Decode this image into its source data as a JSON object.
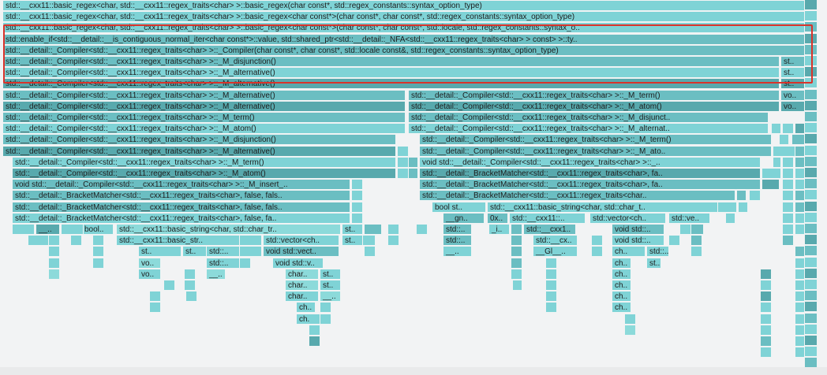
{
  "frames": [
    {
      "row": 0,
      "label": "std::__cxx11::basic_regex<char, std::__cxx11::regex_traits<char> >::basic_regex(char const*, std::regex_constants::syntax_option_type)"
    },
    {
      "row": 1,
      "label": "std::__cxx11::basic_regex<char, std::__cxx11::regex_traits<char> >::basic_regex<char const*>(char const*, char const*, std::regex_constants::syntax_option_type)"
    },
    {
      "row": 2,
      "label": "std::__cxx11::basic_regex<char, std::__cxx11::regex_traits<char> >::basic_regex<char const*>(char const*, char const*, std::locale, std::regex_constants::syntax_o.."
    },
    {
      "row": 3,
      "label": "std::enable_if<std::__detail::__is_contiguous_normal_iter<char const*>::value, std::shared_ptr<std::__detail::_NFA<std::__cxx11::regex_traits<char> > const> >::ty.."
    },
    {
      "row": 4,
      "label": "std::__detail::_Compiler<std::__cxx11::regex_traits<char> >::_Compiler(char const*, char const*, std::locale const&, std::regex_constants::syntax_option_type)"
    },
    {
      "row": 5,
      "label": "std::__detail::_Compiler<std::__cxx11::regex_traits<char> >::_M_disjunction()"
    },
    {
      "row": 5,
      "label": "st.."
    },
    {
      "row": 6,
      "label": "std::__detail::_Compiler<std::__cxx11::regex_traits<char> >::_M_alternative()"
    },
    {
      "row": 6,
      "label": "st.."
    },
    {
      "row": 7,
      "label": "std::__detail::_Compiler<std::__cxx11::regex_traits<char> >::_M_alternative()"
    },
    {
      "row": 7,
      "label": "st.."
    },
    {
      "row": 8,
      "label": "std::__detail::_Compiler<std::__cxx11::regex_traits<char> >::_M_alternative()"
    },
    {
      "row": 8,
      "label": "std::__detail::_Compiler<std::__cxx11::regex_traits<char> >::_M_term()"
    },
    {
      "row": 8,
      "label": "vo.."
    },
    {
      "row": 9,
      "label": "std::__detail::_Compiler<std::__cxx11::regex_traits<char> >::_M_alternative()"
    },
    {
      "row": 9,
      "label": "std::__detail::_Compiler<std::__cxx11::regex_traits<char> >::_M_atom()"
    },
    {
      "row": 9,
      "label": "vo.."
    },
    {
      "row": 10,
      "label": "std::__detail::_Compiler<std::__cxx11::regex_traits<char> >::_M_term()"
    },
    {
      "row": 10,
      "label": "std::__detail::_Compiler<std::__cxx11::regex_traits<char> >::_M_disjunct.."
    },
    {
      "row": 11,
      "label": "std::__detail::_Compiler<std::__cxx11::regex_traits<char> >::_M_atom()"
    },
    {
      "row": 11,
      "label": "std::__detail::_Compiler<std::__cxx11::regex_traits<char> >::_M_alternat.."
    },
    {
      "row": 12,
      "label": "std::__detail::_Compiler<std::__cxx11::regex_traits<char> >::_M_disjunction()"
    },
    {
      "row": 12,
      "label": "std::__detail::_Compiler<std::__cxx11::regex_traits<char> >::_M_term()"
    },
    {
      "row": 13,
      "label": "std::__detail::_Compiler<std::__cxx11::regex_traits<char> >::_M_alternative()"
    },
    {
      "row": 13,
      "label": "std::__detail::_Compiler<std::__cxx11::regex_traits<char> >::_M_ato.."
    },
    {
      "row": 14,
      "label": "std::__detail::_Compiler<std::__cxx11::regex_traits<char> >::_M_term()"
    },
    {
      "row": 14,
      "label": "void std::__detail::_Compiler<std::__cxx11::regex_traits<char> >::_.."
    },
    {
      "row": 15,
      "label": "std::__detail::_Compiler<std::__cxx11::regex_traits<char> >::_M_atom()"
    },
    {
      "row": 15,
      "label": "std::__detail::_BracketMatcher<std::__cxx11::regex_traits<char>, fa.."
    },
    {
      "row": 16,
      "label": "void std::__detail::_Compiler<std::__cxx11::regex_traits<char> >::_M_insert_.."
    },
    {
      "row": 16,
      "label": "std::__detail::_BracketMatcher<std::__cxx11::regex_traits<char>, fa.."
    },
    {
      "row": 17,
      "label": "std::__detail::_BracketMatcher<std::__cxx11::regex_traits<char>, false, fals.."
    },
    {
      "row": 17,
      "label": "std::__detail::_BracketMatcher<std::__cxx11::regex_traits<char.."
    },
    {
      "row": 18,
      "label": "std::__detail::_BracketMatcher<std::__cxx11::regex_traits<char>, false, fals.."
    },
    {
      "row": 18,
      "label": "bool st.."
    },
    {
      "row": 18,
      "label": "std::__cxx11::basic_string<char, std::char_t.."
    },
    {
      "row": 19,
      "label": "std::__detail::_BracketMatcher<std::__cxx11::regex_traits<char>, false, fa.."
    },
    {
      "row": 19,
      "label": "__gn.."
    },
    {
      "row": 19,
      "label": "0x.."
    },
    {
      "row": 19,
      "label": "std::__cxx11::.."
    },
    {
      "row": 19,
      "label": "std::vector<ch.."
    },
    {
      "row": 19,
      "label": "std::ve.."
    },
    {
      "row": 20,
      "label": "__.."
    },
    {
      "row": 20,
      "label": "bool.."
    },
    {
      "row": 20,
      "label": "std::__cxx11::basic_string<char, std::char_tr.."
    },
    {
      "row": 20,
      "label": "st.."
    },
    {
      "row": 20,
      "label": "std::.."
    },
    {
      "row": 20,
      "label": "_i.."
    },
    {
      "row": 20,
      "label": "std::__cxx1.."
    },
    {
      "row": 20,
      "label": "void std::.."
    },
    {
      "row": 21,
      "label": "std::__cxx11::basic_str.."
    },
    {
      "row": 21,
      "label": "std::vector<ch.."
    },
    {
      "row": 21,
      "label": "st.."
    },
    {
      "row": 21,
      "label": "std::.."
    },
    {
      "row": 21,
      "label": "std::__cx.."
    },
    {
      "row": 21,
      "label": "void std::.."
    },
    {
      "row": 22,
      "label": "st.."
    },
    {
      "row": 22,
      "label": "st.."
    },
    {
      "row": 22,
      "label": "std::.."
    },
    {
      "row": 22,
      "label": "void std::vect.."
    },
    {
      "row": 22,
      "label": "__.."
    },
    {
      "row": 22,
      "label": "__Gl__.."
    },
    {
      "row": 22,
      "label": "ch.."
    },
    {
      "row": 22,
      "label": "std::.."
    },
    {
      "row": 23,
      "label": "vo.."
    },
    {
      "row": 23,
      "label": "std::.."
    },
    {
      "row": 23,
      "label": "void std::v.."
    },
    {
      "row": 23,
      "label": "ch.."
    },
    {
      "row": 23,
      "label": "st.."
    },
    {
      "row": 24,
      "label": "vo.."
    },
    {
      "row": 24,
      "label": "__.."
    },
    {
      "row": 24,
      "label": "char.."
    },
    {
      "row": 24,
      "label": "st.."
    },
    {
      "row": 24,
      "label": "ch.."
    },
    {
      "row": 25,
      "label": "char.."
    },
    {
      "row": 25,
      "label": "st.."
    },
    {
      "row": 25,
      "label": "ch.."
    },
    {
      "row": 26,
      "label": "char.."
    },
    {
      "row": 26,
      "label": "__.."
    },
    {
      "row": 26,
      "label": "ch.."
    },
    {
      "row": 27,
      "label": "ch.."
    },
    {
      "row": 27,
      "label": "ch.."
    },
    {
      "row": 28,
      "label": "ch.."
    }
  ]
}
